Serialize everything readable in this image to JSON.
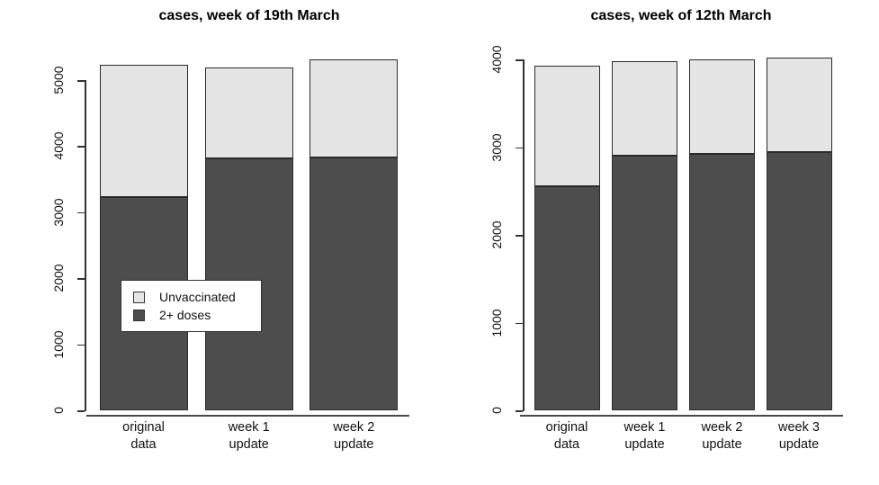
{
  "figure": {
    "background": "#ffffff"
  },
  "chart_data": [
    {
      "type": "bar",
      "stacked": true,
      "title": "cases, week of 19th March",
      "categories": [
        [
          "original",
          "data"
        ],
        [
          "week 1",
          "update"
        ],
        [
          "week 2",
          "update"
        ]
      ],
      "series": [
        {
          "name": "2+ doses",
          "color": "#4d4d4d",
          "values": [
            3230,
            3820,
            3830
          ]
        },
        {
          "name": "Unvaccinated",
          "color": "#e5e5e5",
          "values": [
            2000,
            1370,
            1490
          ]
        }
      ],
      "ylim": [
        0,
        5000
      ],
      "yticks": [
        0,
        1000,
        2000,
        3000,
        4000,
        5000
      ],
      "grid": false,
      "legend": {
        "position": "inside-middle-left",
        "entries": [
          {
            "label": "Unvaccinated",
            "color": "#e5e5e5"
          },
          {
            "label": "2+ doses",
            "color": "#4d4d4d"
          }
        ]
      }
    },
    {
      "type": "bar",
      "stacked": true,
      "title": "cases, week of 12th March",
      "categories": [
        [
          "original",
          "data"
        ],
        [
          "week 1",
          "update"
        ],
        [
          "week 2",
          "update"
        ],
        [
          "week 3",
          "update"
        ]
      ],
      "series": [
        {
          "name": "2+ doses",
          "color": "#4d4d4d",
          "values": [
            2550,
            2900,
            2920,
            2945
          ]
        },
        {
          "name": "Unvaccinated",
          "color": "#e5e5e5",
          "values": [
            1380,
            1075,
            1080,
            1075
          ]
        }
      ],
      "ylim": [
        0,
        4000
      ],
      "yticks": [
        0,
        1000,
        2000,
        3000,
        4000
      ],
      "grid": false,
      "legend": null
    }
  ]
}
